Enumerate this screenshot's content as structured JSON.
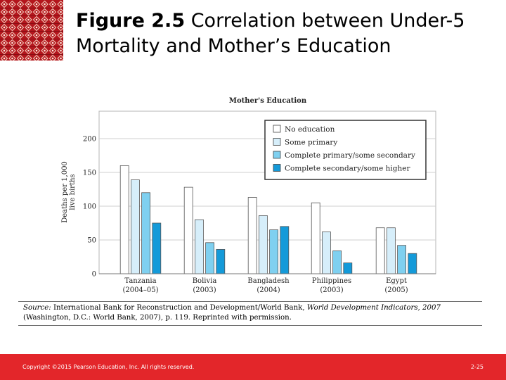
{
  "slide": {
    "title_bold": "Figure 2.5",
    "title_rest": " Correlation between Under-5 Mortality and Mother’s Education"
  },
  "colors": {
    "footer": "#e3262a",
    "logo": "#b3161d",
    "series": [
      "#ffffff",
      "#d6eefa",
      "#7fd0f0",
      "#149ad9"
    ]
  },
  "chart_data": {
    "type": "bar",
    "title": "Mother's Education",
    "ylabel": "Deaths per 1,000 live births",
    "ylabel_lines": [
      "Deaths per 1,000",
      "live births"
    ],
    "ylim": [
      0,
      250
    ],
    "yticks": [
      0,
      50,
      100,
      150,
      200
    ],
    "categories": [
      "Tanzania",
      "Bolivia",
      "Bangladesh",
      "Philippines",
      "Egypt"
    ],
    "category_years": [
      "(2004–05)",
      "(2003)",
      "(2004)",
      "(2003)",
      "(2005)"
    ],
    "series": [
      {
        "name": "No education",
        "values": [
          160,
          128,
          113,
          105,
          68
        ]
      },
      {
        "name": "Some primary",
        "values": [
          139,
          80,
          86,
          62,
          68
        ]
      },
      {
        "name": "Complete primary/some secondary",
        "values": [
          120,
          46,
          65,
          34,
          42
        ]
      },
      {
        "name": "Complete secondary/some higher",
        "values": [
          75,
          36,
          70,
          16,
          30
        ]
      }
    ],
    "grid": true,
    "legend_position": "top-right"
  },
  "source": {
    "label": "Source:",
    "text_1": " International Bank for Reconstruction and Development/World Bank, ",
    "italic": "World Development Indicators, 2007",
    "text_2": " (Washington, D.C.: World Bank, 2007), p. 119. Reprinted with permission."
  },
  "footer": {
    "copyright": "Copyright ©2015 Pearson Education, Inc. All rights reserved.",
    "page": "2-25"
  }
}
